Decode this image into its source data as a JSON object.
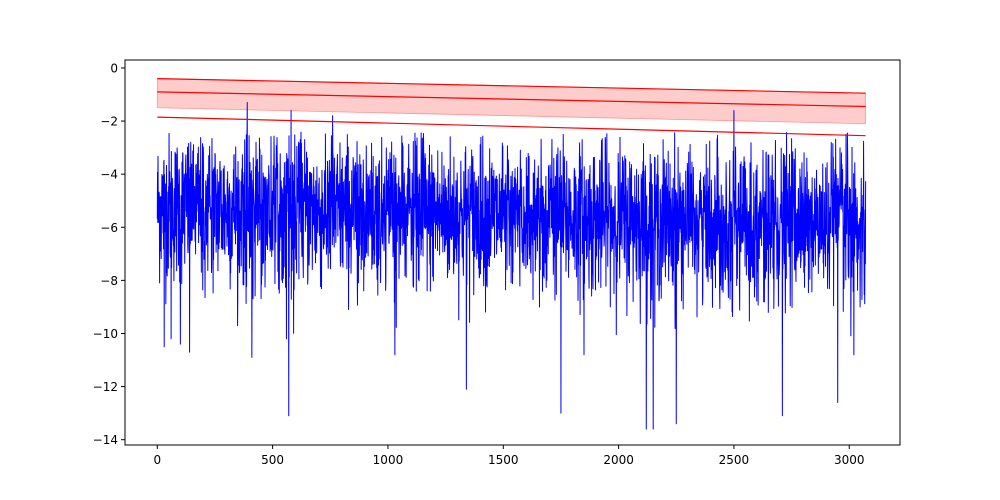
{
  "chart_data": {
    "type": "line",
    "title": "",
    "xlabel": "",
    "ylabel": "",
    "xlim": [
      -140,
      3220
    ],
    "ylim": [
      -14.2,
      0.3
    ],
    "x_ticks": [
      0,
      500,
      1000,
      1500,
      2000,
      2500,
      3000
    ],
    "y_ticks": [
      0,
      -2,
      -4,
      -6,
      -8,
      -10,
      -12,
      -14
    ],
    "x_tick_labels": [
      "0",
      "500",
      "1000",
      "1500",
      "2000",
      "2500",
      "3000"
    ],
    "y_tick_labels": [
      "0",
      "−2",
      "−4",
      "−6",
      "−8",
      "−10",
      "−12",
      "−14"
    ],
    "grid": false,
    "legend": "none",
    "series": [
      {
        "style": "noisy-line",
        "color": "#0000ff",
        "n_points": 3072,
        "x_range": [
          0,
          3071
        ],
        "baseline_start": -5.0,
        "baseline_end": -5.7,
        "typical_min": -8.5,
        "typical_max": -2.7,
        "notable_points": [
          {
            "x": 30,
            "y": -10.5
          },
          {
            "x": 60,
            "y": -10.2
          },
          {
            "x": 100,
            "y": -10.4
          },
          {
            "x": 140,
            "y": -10.7
          },
          {
            "x": 390,
            "y": -1.3
          },
          {
            "x": 410,
            "y": -10.9
          },
          {
            "x": 560,
            "y": -10.2
          },
          {
            "x": 570,
            "y": -13.1
          },
          {
            "x": 580,
            "y": -1.6
          },
          {
            "x": 760,
            "y": -1.8
          },
          {
            "x": 1030,
            "y": -10.8
          },
          {
            "x": 1340,
            "y": -12.1
          },
          {
            "x": 1750,
            "y": -13.0
          },
          {
            "x": 1850,
            "y": -10.8
          },
          {
            "x": 2120,
            "y": -13.6
          },
          {
            "x": 2150,
            "y": -13.6
          },
          {
            "x": 2250,
            "y": -13.4
          },
          {
            "x": 2500,
            "y": -1.6
          },
          {
            "x": 2710,
            "y": -13.1
          },
          {
            "x": 2950,
            "y": -12.6
          },
          {
            "x": 3020,
            "y": -10.8
          }
        ]
      },
      {
        "style": "line",
        "color": "#ff0000",
        "x": [
          0,
          3071
        ],
        "y": [
          -0.4,
          -0.95
        ]
      },
      {
        "style": "line",
        "color": "#ff0000",
        "x": [
          0,
          3071
        ],
        "y": [
          -0.9,
          -1.45
        ]
      },
      {
        "style": "line",
        "color": "#ff0000",
        "x": [
          0,
          3071
        ],
        "y": [
          -1.85,
          -2.55
        ]
      },
      {
        "style": "band",
        "color": "#ff0000",
        "opacity": 0.2,
        "x": [
          0,
          3071
        ],
        "y_upper": [
          -0.4,
          -0.95
        ],
        "y_lower": [
          -1.5,
          -2.1
        ]
      }
    ]
  }
}
